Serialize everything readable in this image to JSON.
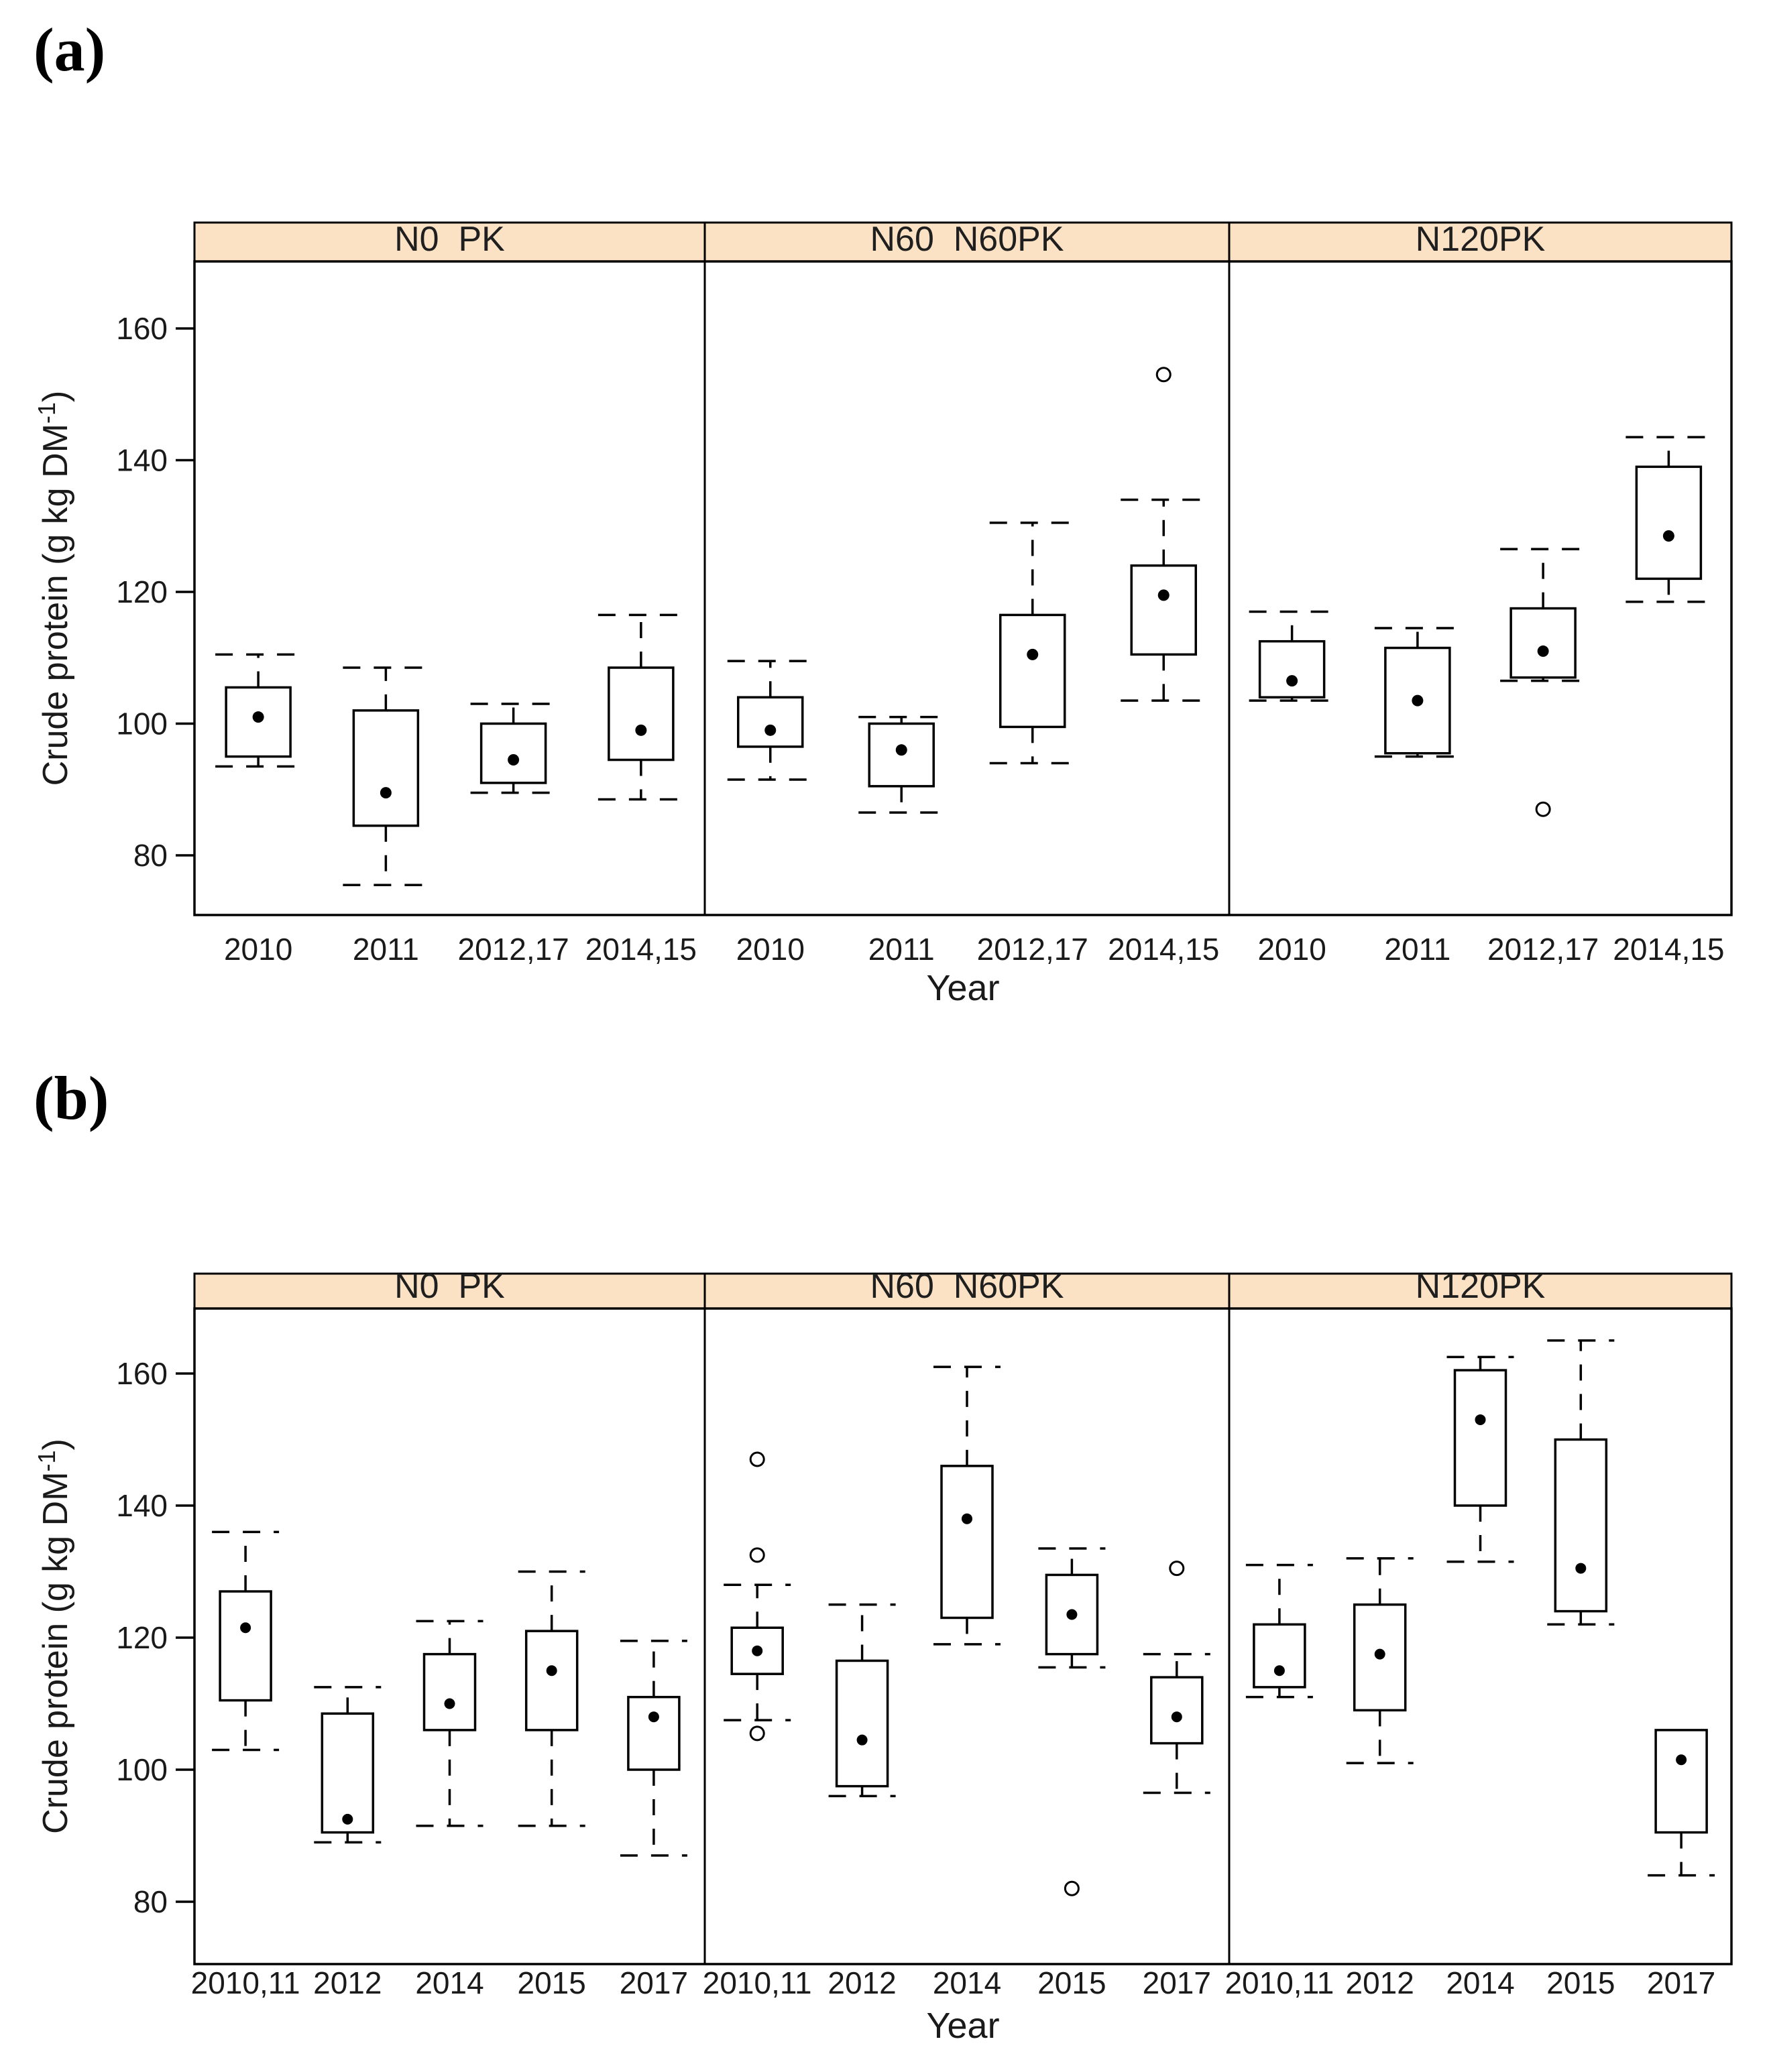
{
  "figure": {
    "panel_a_label": "(a)",
    "panel_b_label": "(b)"
  },
  "colors": {
    "strip_fill": "#fce2c4",
    "line": "#000000",
    "text": "#1a1a1a",
    "background": "#ffffff"
  },
  "chart_data": [
    {
      "id": "a",
      "type": "boxplot",
      "panel": "(a)",
      "xlabel": "Year",
      "ylabel": {
        "text": "Crude protein (g kg DM",
        "superscript": "-1",
        "suffix": ")"
      },
      "yticks": [
        80,
        100,
        120,
        140,
        160
      ],
      "ylim": [
        71,
        170
      ],
      "grid": false,
      "legend": "none",
      "marker_meaning": "filled dot = median, box = interquartile range, dashed whiskers, open circles = outliers",
      "facets": [
        {
          "label": "N0  PK",
          "categories": [
            "2010",
            "2011",
            "2012,17",
            "2014,15"
          ],
          "boxes": [
            {
              "category": "2010",
              "low": 93.5,
              "q1": 95,
              "median": 101,
              "q3": 105.5,
              "high": 110.5,
              "outliers": []
            },
            {
              "category": "2011",
              "low": 75.5,
              "q1": 84.5,
              "median": 89.5,
              "q3": 102,
              "high": 108.5,
              "outliers": []
            },
            {
              "category": "2012,17",
              "low": 89.5,
              "q1": 91,
              "median": 94.5,
              "q3": 100,
              "high": 103,
              "outliers": []
            },
            {
              "category": "2014,15",
              "low": 88.5,
              "q1": 94.5,
              "median": 99,
              "q3": 108.5,
              "high": 116.5,
              "outliers": []
            }
          ]
        },
        {
          "label": "N60  N60PK",
          "categories": [
            "2010",
            "2011",
            "2012,17",
            "2014,15"
          ],
          "boxes": [
            {
              "category": "2010",
              "low": 91.5,
              "q1": 96.5,
              "median": 99,
              "q3": 104,
              "high": 109.5,
              "outliers": []
            },
            {
              "category": "2011",
              "low": 86.5,
              "q1": 90.5,
              "median": 96,
              "q3": 100,
              "high": 101,
              "outliers": []
            },
            {
              "category": "2012,17",
              "low": 94,
              "q1": 99.5,
              "median": 110.5,
              "q3": 116.5,
              "high": 130.5,
              "outliers": []
            },
            {
              "category": "2014,15",
              "low": 103.5,
              "q1": 110.5,
              "median": 119.5,
              "q3": 124,
              "high": 134,
              "outliers": [
                153
              ]
            }
          ]
        },
        {
          "label": "N120PK",
          "categories": [
            "2010",
            "2011",
            "2012,17",
            "2014,15"
          ],
          "boxes": [
            {
              "category": "2010",
              "low": 103.5,
              "q1": 104,
              "median": 106.5,
              "q3": 112.5,
              "high": 117,
              "outliers": []
            },
            {
              "category": "2011",
              "low": 95,
              "q1": 95.5,
              "median": 103.5,
              "q3": 111.5,
              "high": 114.5,
              "outliers": []
            },
            {
              "category": "2012,17",
              "low": 106.5,
              "q1": 107,
              "median": 111,
              "q3": 117.5,
              "high": 126.5,
              "outliers": [
                87
              ]
            },
            {
              "category": "2014,15",
              "low": 118.5,
              "q1": 122,
              "median": 128.5,
              "q3": 139,
              "high": 143.5,
              "outliers": []
            }
          ]
        }
      ]
    },
    {
      "id": "b",
      "type": "boxplot",
      "panel": "(b)",
      "xlabel": "Year",
      "ylabel": {
        "text": "Crude protein (g kg DM",
        "superscript": "-1",
        "suffix": ")"
      },
      "yticks": [
        80,
        100,
        120,
        140,
        160
      ],
      "ylim": [
        70,
        170
      ],
      "grid": false,
      "legend": "none",
      "marker_meaning": "filled dot = median, box = interquartile range, dashed whiskers, open circles = outliers",
      "facets": [
        {
          "label": "N0  PK",
          "categories": [
            "2010,11",
            "2012",
            "2014",
            "2015",
            "2017"
          ],
          "boxes": [
            {
              "category": "2010,11",
              "low": 103,
              "q1": 110.5,
              "median": 121.5,
              "q3": 127,
              "high": 136,
              "outliers": []
            },
            {
              "category": "2012",
              "low": 89,
              "q1": 90.5,
              "median": 92.5,
              "q3": 108.5,
              "high": 112.5,
              "outliers": []
            },
            {
              "category": "2014",
              "low": 91.5,
              "q1": 106,
              "median": 110,
              "q3": 117.5,
              "high": 122.5,
              "outliers": []
            },
            {
              "category": "2015",
              "low": 91.5,
              "q1": 106,
              "median": 115,
              "q3": 121,
              "high": 130,
              "outliers": []
            },
            {
              "category": "2017",
              "low": 87,
              "q1": 100,
              "median": 108,
              "q3": 111,
              "high": 119.5,
              "outliers": []
            }
          ]
        },
        {
          "label": "N60  N60PK",
          "categories": [
            "2010,11",
            "2012",
            "2014",
            "2015",
            "2017"
          ],
          "boxes": [
            {
              "category": "2010,11",
              "low": 107.5,
              "q1": 114.5,
              "median": 118,
              "q3": 121.5,
              "high": 128,
              "outliers": [
                147,
                132.5,
                105.5
              ]
            },
            {
              "category": "2012",
              "low": 96,
              "q1": 97.5,
              "median": 104.5,
              "q3": 116.5,
              "high": 125,
              "outliers": []
            },
            {
              "category": "2014",
              "low": 119,
              "q1": 123,
              "median": 138,
              "q3": 146,
              "high": 161,
              "outliers": []
            },
            {
              "category": "2015",
              "low": 115.5,
              "q1": 117.5,
              "median": 123.5,
              "q3": 129.5,
              "high": 133.5,
              "outliers": [
                82
              ]
            },
            {
              "category": "2017",
              "low": 96.5,
              "q1": 104,
              "median": 108,
              "q3": 114,
              "high": 117.5,
              "outliers": [
                130.5
              ]
            }
          ]
        },
        {
          "label": "N120PK",
          "categories": [
            "2010,11",
            "2012",
            "2014",
            "2015",
            "2017"
          ],
          "boxes": [
            {
              "category": "2010,11",
              "low": 111,
              "q1": 112.5,
              "median": 115,
              "q3": 122,
              "high": 131,
              "outliers": []
            },
            {
              "category": "2012",
              "low": 101,
              "q1": 109,
              "median": 117.5,
              "q3": 125,
              "high": 132,
              "outliers": []
            },
            {
              "category": "2014",
              "low": 131.5,
              "q1": 140,
              "median": 153,
              "q3": 160.5,
              "high": 162.5,
              "outliers": []
            },
            {
              "category": "2015",
              "low": 122,
              "q1": 124,
              "median": 130.5,
              "q3": 150,
              "high": 165,
              "outliers": []
            },
            {
              "category": "2017",
              "low": 84,
              "q1": 90.5,
              "median": 101.5,
              "q3": 106,
              "high": 106,
              "outliers": []
            }
          ]
        }
      ]
    }
  ]
}
